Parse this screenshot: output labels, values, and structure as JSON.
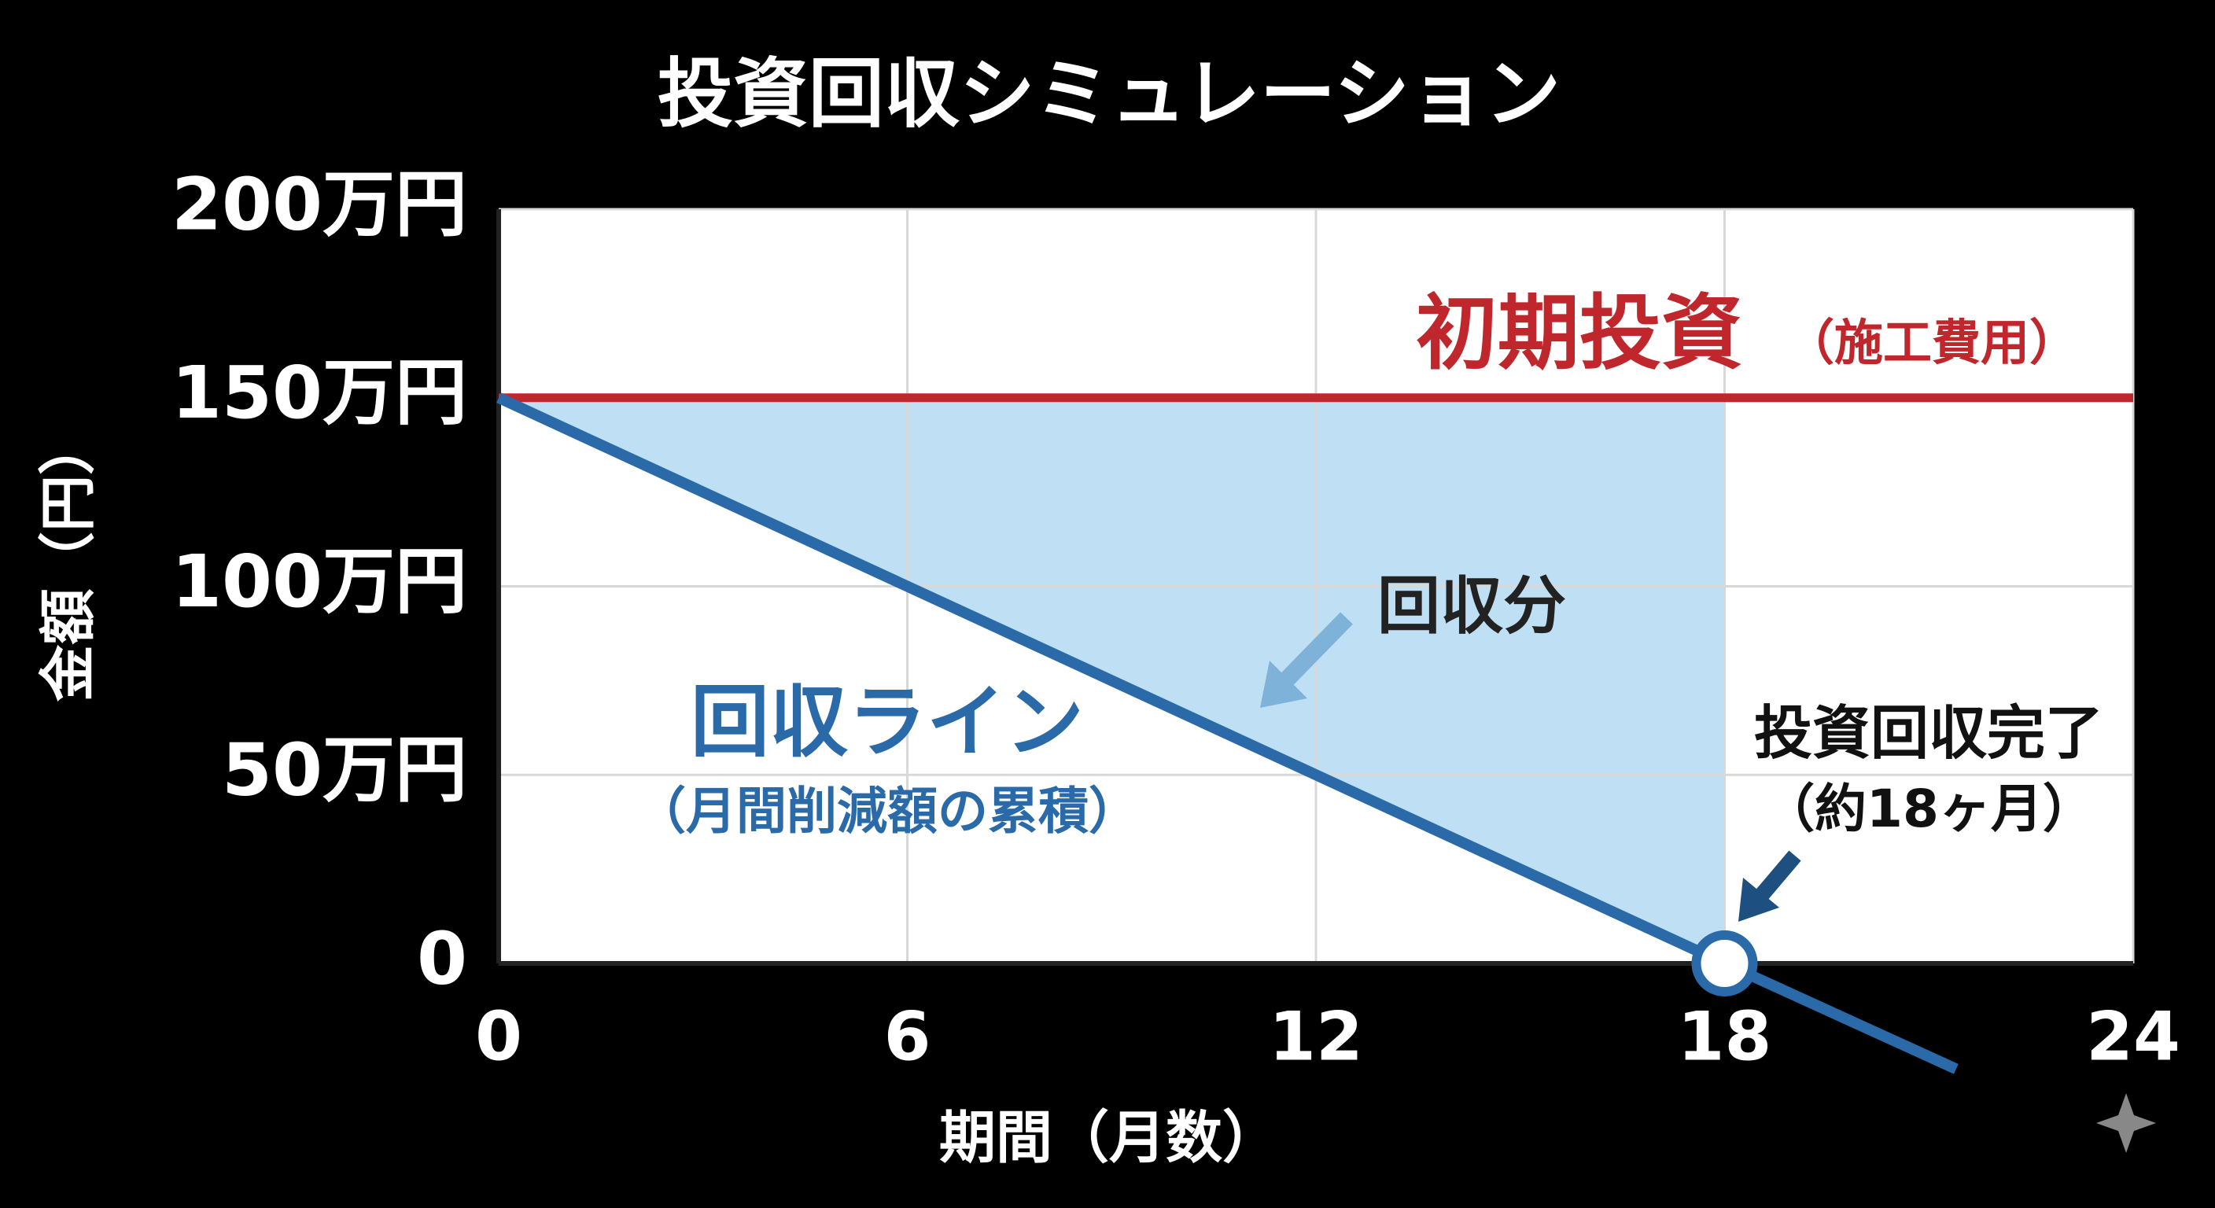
{
  "chart_data": {
    "type": "line",
    "title": "投資回収シミュレーション",
    "xlabel": "期間（月数）",
    "ylabel": "金額（円）",
    "xlim": [
      0,
      24
    ],
    "xticks": [
      0,
      6,
      12,
      18,
      24
    ],
    "ylim": [
      0,
      200
    ],
    "yticks": [
      0,
      {
        "value": 50,
        "label": "50万円"
      },
      {
        "value": 100,
        "label": "100万円"
      },
      {
        "value": 150,
        "label": "150万円"
      },
      {
        "value": 200,
        "label": "200万円"
      }
    ],
    "grid": true,
    "series": [
      {
        "name": "初期投資",
        "note": "（施工費用）",
        "color": "#c0272d",
        "x": [
          0,
          24
        ],
        "values": [
          150,
          150
        ]
      },
      {
        "name": "回収ライン",
        "note": "（月間削減額の累積）",
        "color": "#2a6aa8",
        "x": [
          0,
          18,
          21.4
        ],
        "values": [
          150,
          0,
          -28
        ]
      }
    ],
    "area_color": "#bfe0f4",
    "annotations": [
      {
        "text": "回収分"
      },
      {
        "text": "投資回収完了",
        "note": "（約18ヶ月）"
      }
    ]
  }
}
